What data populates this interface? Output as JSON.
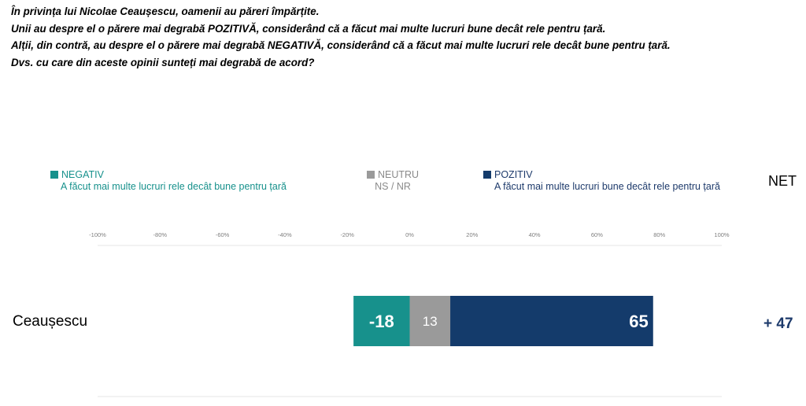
{
  "question": {
    "lines": [
      "În privința lui Nicolae Ceaușescu, oamenii au păreri împărțite.",
      "Unii au despre el o părere mai degrabă POZITIVĂ, considerând că a făcut mai multe lucruri bune decât rele pentru țară.",
      "Alții, din contră, au despre el o părere mai degrabă NEGATIVĂ, considerând că a făcut mai multe lucruri rele decât bune pentru țară.",
      "Dvs. cu care din aceste opinii sunteți mai degrabă de acord?"
    ]
  },
  "legend": {
    "negative": {
      "title": "NEGATIV",
      "subtitle": "A făcut mai multe lucruri rele decât bune pentru țară",
      "color": "#17918c"
    },
    "neutral": {
      "title": "NEUTRU",
      "subtitle": "NS / NR",
      "color": "#9a9a9a"
    },
    "positive": {
      "title": "POZITIV",
      "subtitle": "A făcut mai multe lucruri bune decât rele pentru țară",
      "color": "#143b6b"
    }
  },
  "net_header": "NET",
  "chart_data": {
    "type": "bar",
    "orientation": "horizontal-stacked-diverging",
    "xlim": [
      -100,
      100
    ],
    "ticks": [
      "-100%",
      "-80%",
      "-60%",
      "-40%",
      "-20%",
      "0%",
      "20%",
      "40%",
      "60%",
      "80%",
      "100%"
    ],
    "categories": [
      "Ceaușescu"
    ],
    "series": [
      {
        "name": "NEGATIV",
        "values": [
          -18
        ],
        "labels": [
          "-18"
        ],
        "color": "#17918c"
      },
      {
        "name": "NEUTRU",
        "values": [
          13
        ],
        "labels": [
          "13"
        ],
        "color": "#9a9a9a"
      },
      {
        "name": "POZITIV",
        "values": [
          65
        ],
        "labels": [
          "65"
        ],
        "color": "#143b6b"
      }
    ],
    "net": [
      "+ 47"
    ],
    "grid": false
  }
}
